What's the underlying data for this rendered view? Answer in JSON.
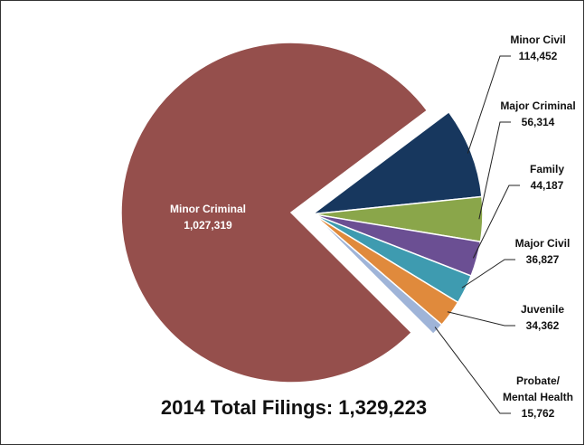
{
  "chart_data": {
    "type": "pie",
    "title": "2014 Total Filings: 1,329,223",
    "categories": [
      "Minor Criminal",
      "Minor Civil",
      "Major Criminal",
      "Family",
      "Major Civil",
      "Juvenile",
      "Probate/ Mental Health"
    ],
    "values": [
      1027319,
      114452,
      56314,
      44187,
      36827,
      34362,
      15762
    ],
    "value_labels": [
      "1,027,319",
      "114,452",
      "56,314",
      "44,187",
      "36,827",
      "34,362",
      "15,762"
    ],
    "colors": [
      "#954f4c",
      "#17375e",
      "#8aa64a",
      "#6b4f93",
      "#3e9bb0",
      "#e08a3c",
      "#9fb4d8"
    ]
  }
}
